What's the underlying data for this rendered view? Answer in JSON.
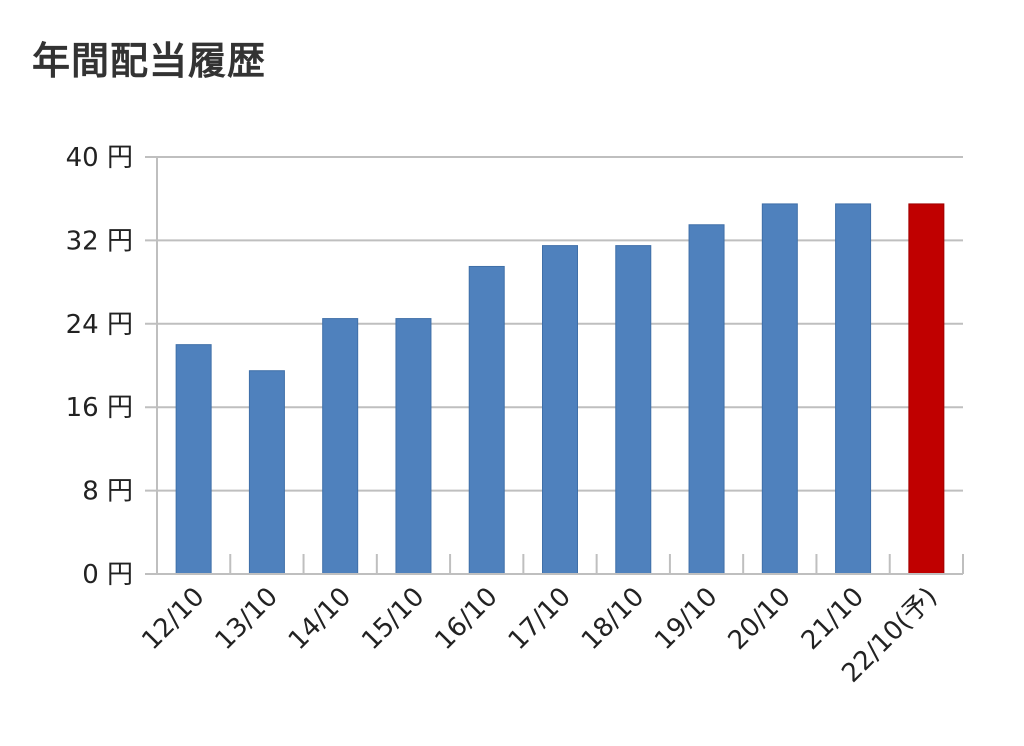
{
  "chart_data": {
    "type": "bar",
    "title": "年間配当履歴",
    "categories": [
      "12/10",
      "13/10",
      "14/10",
      "15/10",
      "16/10",
      "17/10",
      "18/10",
      "19/10",
      "20/10",
      "21/10",
      "22/10(予)"
    ],
    "values": [
      22,
      19.5,
      24.5,
      24.5,
      29.5,
      31.5,
      31.5,
      33.5,
      35.5,
      35.5,
      35.5
    ],
    "ylim": [
      0,
      40
    ],
    "yticks": [
      0,
      8,
      16,
      24,
      32,
      40
    ],
    "y_unit": "円",
    "grid": true,
    "colors": {
      "bar": "#4f81bd",
      "forecast_bar": "#c00000",
      "grid": "#bfbfbf",
      "axis": "#bfbfbf"
    },
    "forecast_index": 10
  }
}
